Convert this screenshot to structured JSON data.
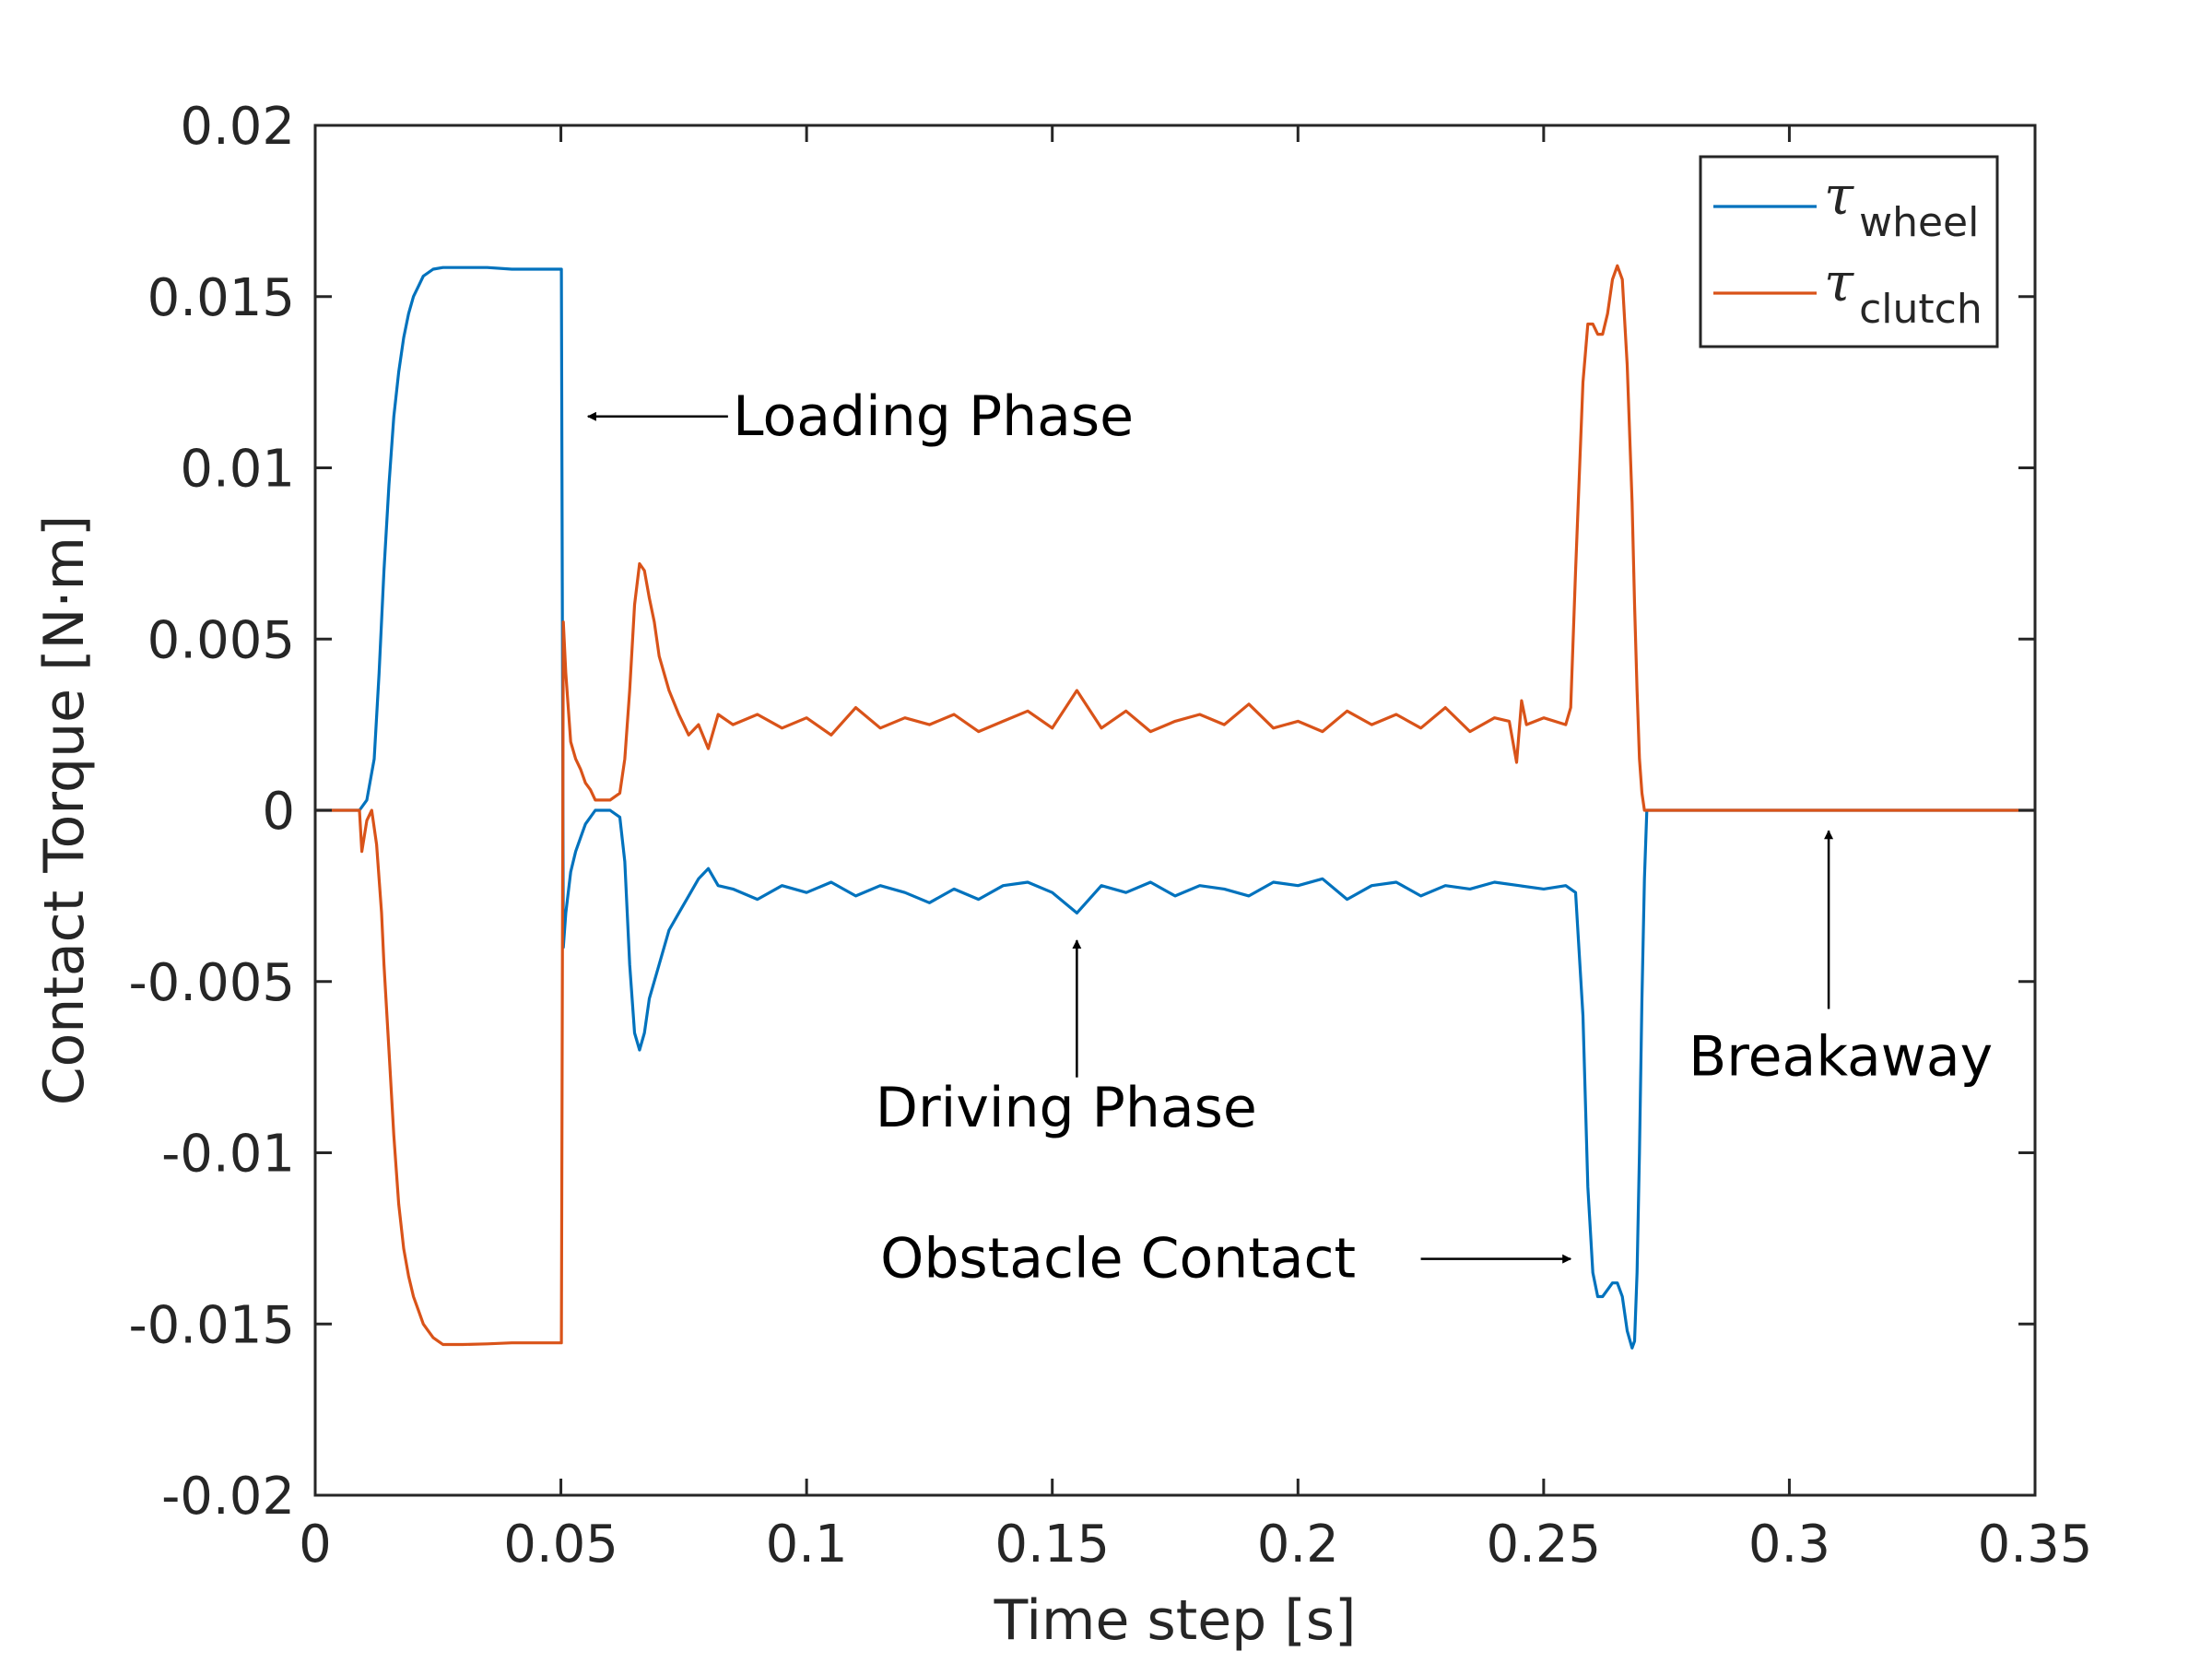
{
  "chart_data": {
    "type": "line",
    "title": "",
    "xlabel": "Time step [s]",
    "ylabel": "Contact Torque [N·m]",
    "xlim": [
      0,
      0.35
    ],
    "ylim": [
      -0.02,
      0.02
    ],
    "xticks": [
      0,
      0.05,
      0.1,
      0.15,
      0.2,
      0.25,
      0.3,
      0.35
    ],
    "xtick_labels": [
      "0",
      "0.05",
      "0.1",
      "0.15",
      "0.2",
      "0.25",
      "0.3",
      "0.35"
    ],
    "yticks": [
      -0.02,
      -0.015,
      -0.01,
      -0.005,
      0,
      0.005,
      0.01,
      0.015,
      0.02
    ],
    "ytick_labels": [
      "-0.02",
      "-0.015",
      "-0.01",
      "-0.005",
      "0",
      "0.005",
      "0.01",
      "0.015",
      "0.02"
    ],
    "grid": false,
    "box": true,
    "legend": {
      "position": "top-right",
      "entries": [
        {
          "symbol": "τ",
          "subscript": "wheel",
          "series": 0
        },
        {
          "symbol": "τ",
          "subscript": "clutch",
          "series": 1
        }
      ]
    },
    "series": [
      {
        "legend_symbol": "τ",
        "legend_subscript": "wheel",
        "color": "#0072BD",
        "x": [
          0,
          0.009,
          0.0105,
          0.012,
          0.013,
          0.014,
          0.015,
          0.016,
          0.017,
          0.018,
          0.019,
          0.02,
          0.021,
          0.022,
          0.024,
          0.026,
          0.03,
          0.035,
          0.04,
          0.045,
          0.05,
          0.0501,
          0.0505,
          0.051,
          0.052,
          0.053,
          0.054,
          0.055,
          0.057,
          0.06,
          0.062,
          0.063,
          0.064,
          0.065,
          0.066,
          0.067,
          0.068,
          0.07,
          0.072,
          0.074,
          0.076,
          0.078,
          0.08,
          0.082,
          0.085,
          0.09,
          0.095,
          0.1,
          0.105,
          0.11,
          0.115,
          0.12,
          0.125,
          0.13,
          0.135,
          0.14,
          0.145,
          0.15,
          0.155,
          0.16,
          0.165,
          0.17,
          0.175,
          0.18,
          0.185,
          0.19,
          0.195,
          0.2,
          0.205,
          0.21,
          0.215,
          0.22,
          0.225,
          0.23,
          0.235,
          0.24,
          0.245,
          0.25,
          0.2545,
          0.2565,
          0.258,
          0.259,
          0.26,
          0.261,
          0.262,
          0.263,
          0.264,
          0.265,
          0.266,
          0.267,
          0.268,
          0.2685,
          0.269,
          0.2695,
          0.27,
          0.2705,
          0.271,
          0.28,
          0.29,
          0.3,
          0.31,
          0.32,
          0.33,
          0.34,
          0.35
        ],
        "y": [
          0,
          0,
          0.0003,
          0.0015,
          0.004,
          0.007,
          0.0095,
          0.0115,
          0.0128,
          0.0138,
          0.0145,
          0.015,
          0.0153,
          0.0156,
          0.0158,
          0.01585,
          0.01585,
          0.01585,
          0.0158,
          0.0158,
          0.0158,
          0.0158,
          -0.004,
          -0.003,
          -0.0018,
          -0.0012,
          -0.0008,
          -0.0004,
          0,
          0,
          -0.0002,
          -0.0015,
          -0.0045,
          -0.0065,
          -0.007,
          -0.0065,
          -0.0055,
          -0.0045,
          -0.0035,
          -0.003,
          -0.0025,
          -0.002,
          -0.0017,
          -0.0022,
          -0.0023,
          -0.0026,
          -0.0022,
          -0.0024,
          -0.0021,
          -0.0025,
          -0.0022,
          -0.0024,
          -0.0027,
          -0.0023,
          -0.0026,
          -0.0022,
          -0.0021,
          -0.0024,
          -0.003,
          -0.0022,
          -0.0024,
          -0.0021,
          -0.0025,
          -0.0022,
          -0.0023,
          -0.0025,
          -0.0021,
          -0.0022,
          -0.002,
          -0.0026,
          -0.0022,
          -0.0021,
          -0.0025,
          -0.0022,
          -0.0023,
          -0.0021,
          -0.0022,
          -0.0023,
          -0.0022,
          -0.0024,
          -0.006,
          -0.011,
          -0.0135,
          -0.0142,
          -0.0142,
          -0.014,
          -0.0138,
          -0.0138,
          -0.0142,
          -0.0152,
          -0.0157,
          -0.0155,
          -0.0135,
          -0.01,
          -0.0055,
          -0.002,
          0,
          0,
          0,
          0,
          0,
          0,
          0,
          0,
          0
        ]
      },
      {
        "legend_symbol": "τ",
        "legend_subscript": "clutch",
        "color": "#D95319",
        "x": [
          0,
          0.009,
          0.0095,
          0.0105,
          0.0115,
          0.0125,
          0.0135,
          0.014,
          0.015,
          0.016,
          0.017,
          0.018,
          0.019,
          0.02,
          0.021,
          0.022,
          0.023,
          0.024,
          0.025,
          0.026,
          0.027,
          0.028,
          0.03,
          0.035,
          0.04,
          0.045,
          0.05,
          0.0501,
          0.0505,
          0.051,
          0.052,
          0.053,
          0.054,
          0.055,
          0.056,
          0.057,
          0.06,
          0.062,
          0.063,
          0.064,
          0.065,
          0.066,
          0.067,
          0.068,
          0.069,
          0.07,
          0.072,
          0.074,
          0.076,
          0.078,
          0.08,
          0.082,
          0.085,
          0.09,
          0.095,
          0.1,
          0.105,
          0.11,
          0.115,
          0.12,
          0.125,
          0.13,
          0.135,
          0.14,
          0.145,
          0.15,
          0.155,
          0.16,
          0.165,
          0.17,
          0.175,
          0.18,
          0.185,
          0.19,
          0.195,
          0.2,
          0.205,
          0.21,
          0.215,
          0.22,
          0.225,
          0.23,
          0.235,
          0.24,
          0.243,
          0.2445,
          0.2455,
          0.2465,
          0.25,
          0.2545,
          0.2555,
          0.2565,
          0.258,
          0.259,
          0.26,
          0.261,
          0.262,
          0.263,
          0.264,
          0.265,
          0.266,
          0.267,
          0.268,
          0.2685,
          0.269,
          0.2695,
          0.27,
          0.2705,
          0.271,
          0.28,
          0.29,
          0.3,
          0.31,
          0.32,
          0.33,
          0.34,
          0.35
        ],
        "y": [
          0,
          0,
          -0.0012,
          -0.0003,
          0,
          -0.001,
          -0.003,
          -0.0045,
          -0.007,
          -0.0095,
          -0.0115,
          -0.0128,
          -0.0136,
          -0.0142,
          -0.0146,
          -0.015,
          -0.0152,
          -0.0154,
          -0.0155,
          -0.0156,
          -0.0156,
          -0.0156,
          -0.0156,
          -0.01558,
          -0.01555,
          -0.01555,
          -0.01555,
          -0.01555,
          0.0055,
          0.004,
          0.002,
          0.0015,
          0.0012,
          0.0008,
          0.0006,
          0.0003,
          0.0003,
          0.0005,
          0.0015,
          0.0035,
          0.006,
          0.0072,
          0.007,
          0.0062,
          0.0055,
          0.0045,
          0.0035,
          0.0028,
          0.0022,
          0.0025,
          0.0018,
          0.0028,
          0.0025,
          0.0028,
          0.0024,
          0.0027,
          0.0022,
          0.003,
          0.0024,
          0.0027,
          0.0025,
          0.0028,
          0.0023,
          0.0026,
          0.0029,
          0.0024,
          0.0035,
          0.0024,
          0.0029,
          0.0023,
          0.0026,
          0.0028,
          0.0025,
          0.0031,
          0.0024,
          0.0026,
          0.0023,
          0.0029,
          0.0025,
          0.0028,
          0.0024,
          0.003,
          0.0023,
          0.0027,
          0.0026,
          0.0014,
          0.0032,
          0.0025,
          0.0027,
          0.0025,
          0.003,
          0.007,
          0.0125,
          0.0142,
          0.0142,
          0.0139,
          0.0139,
          0.0145,
          0.0155,
          0.0159,
          0.0155,
          0.013,
          0.009,
          0.006,
          0.0035,
          0.0015,
          0.0005,
          0,
          0,
          0,
          0,
          0,
          0,
          0,
          0,
          0,
          0
        ]
      }
    ],
    "annotations": [
      {
        "text": "Loading Phase",
        "label_at": [
          0.085,
          0.0115
        ],
        "arrow_from": [
          0.084,
          0.0115
        ],
        "arrow_to": [
          0.0555,
          0.0115
        ]
      },
      {
        "text": "Driving Phase",
        "label_at": [
          0.114,
          -0.0087
        ],
        "arrow_from": [
          0.155,
          -0.0078
        ],
        "arrow_to": [
          0.155,
          -0.0038
        ]
      },
      {
        "text": "Obstacle Contact",
        "label_at": [
          0.115,
          -0.0131
        ],
        "arrow_from": [
          0.225,
          -0.0131
        ],
        "arrow_to": [
          0.2555,
          -0.0131
        ]
      },
      {
        "text": "Breakaway",
        "label_at": [
          0.2795,
          -0.0072
        ],
        "arrow_from": [
          0.308,
          -0.0058
        ],
        "arrow_to": [
          0.308,
          -0.0006
        ]
      }
    ]
  }
}
